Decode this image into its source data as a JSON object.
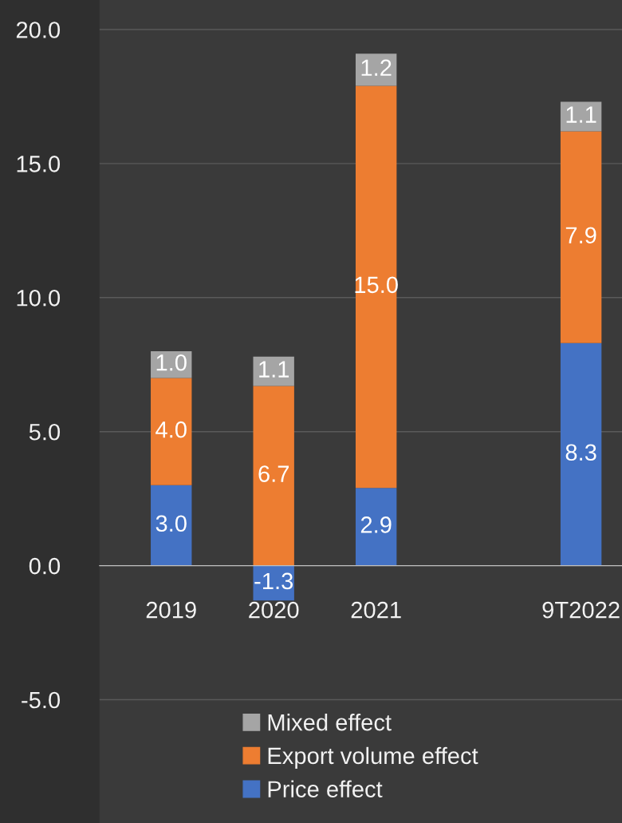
{
  "chart_data": {
    "type": "bar",
    "stacked": true,
    "categories": [
      "2019",
      "2020",
      "2021",
      null,
      "9T2022"
    ],
    "series": [
      {
        "name": "Price effect",
        "color": "#4472c4",
        "values": [
          3.0,
          -1.3,
          2.9,
          null,
          8.3
        ],
        "value_labels": [
          "3.0",
          "-1.3",
          "2.9",
          null,
          "8.3"
        ]
      },
      {
        "name": "Export volume effect",
        "color": "#ed7d31",
        "values": [
          4.0,
          6.7,
          15.0,
          null,
          7.9
        ],
        "value_labels": [
          "4.0",
          "6.7",
          "15.0",
          null,
          "7.9"
        ]
      },
      {
        "name": "Mixed effect",
        "color": "#a5a5a5",
        "values": [
          1.0,
          1.1,
          1.2,
          null,
          1.1
        ],
        "value_labels": [
          "1.0",
          "1.1",
          "1.2",
          null,
          "1.1"
        ]
      }
    ],
    "ylim": [
      -9.6,
      21.1
    ],
    "yticks": [
      {
        "value": -5,
        "label": "-5.0"
      },
      {
        "value": 0,
        "label": "0.0"
      },
      {
        "value": 5,
        "label": "5.0"
      },
      {
        "value": 10,
        "label": "10.0"
      },
      {
        "value": 15,
        "label": "15.0"
      },
      {
        "value": 20,
        "label": "20.0"
      }
    ],
    "grid": "y",
    "legend": "bottom"
  }
}
